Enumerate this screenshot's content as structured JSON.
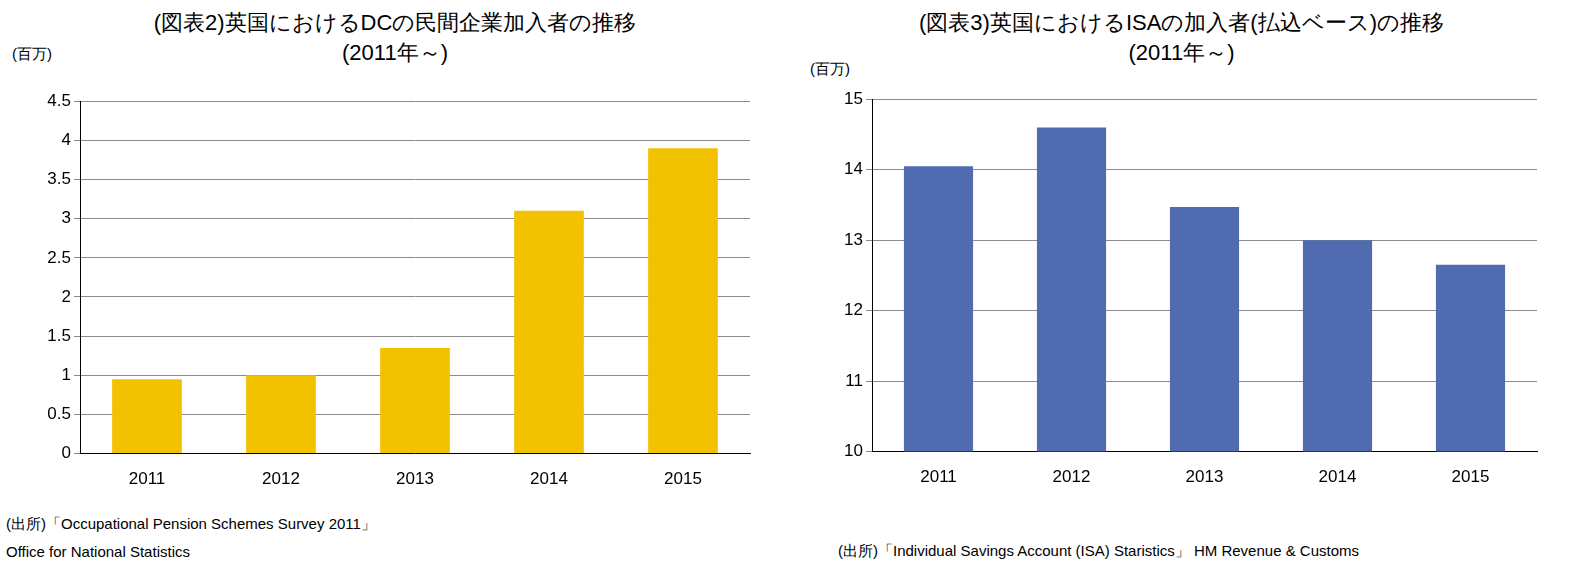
{
  "chart_data": [
    {
      "type": "bar",
      "title": "(図表2)英国におけるDCの民間企業加入者の推移",
      "subtitle": "(2011年～)",
      "y_label": "(百万)",
      "categories": [
        "2011",
        "2012",
        "2013",
        "2014",
        "2015"
      ],
      "values": [
        0.95,
        1.0,
        1.35,
        3.1,
        3.9
      ],
      "color": "#f2c100",
      "ylim": [
        0,
        4.5
      ],
      "yticks": [
        0,
        0.5,
        1,
        1.5,
        2,
        2.5,
        3,
        3.5,
        4,
        4.5
      ],
      "grid": true,
      "source": [
        "(出所)「Occupational Pension Schemes Survey 2011」",
        "Office for National Statistics"
      ]
    },
    {
      "type": "bar",
      "title": "(図表3)英国におけるISAの加入者(払込ベース)の推移",
      "subtitle": "(2011年～)",
      "y_label": "(百万)",
      "categories": [
        "2011",
        "2012",
        "2013",
        "2014",
        "2015"
      ],
      "values": [
        14.05,
        14.6,
        13.47,
        13.0,
        12.65
      ],
      "color": "#506bb0",
      "ylim": [
        10,
        15
      ],
      "yticks": [
        10,
        11,
        12,
        13,
        14,
        15
      ],
      "grid": true,
      "source": [
        "(出所)「Individual Savings Account (ISA) Staristics」 HM Revenue & Customs"
      ]
    }
  ]
}
